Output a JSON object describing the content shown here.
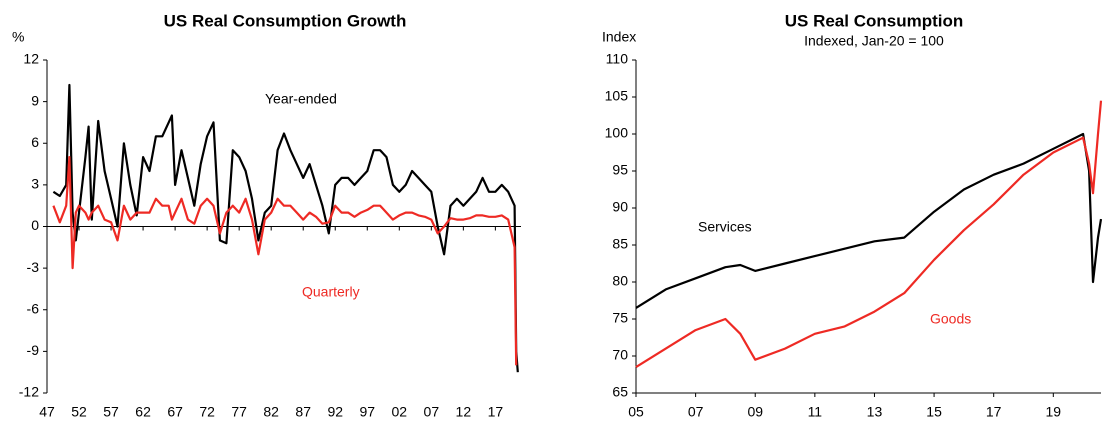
{
  "chart_data": [
    {
      "type": "line",
      "title": "US Real Consumption  Growth",
      "y_label": "%",
      "x": [
        1948,
        1949,
        1950,
        1950.5,
        1951,
        1951.5,
        1952,
        1953,
        1953.5,
        1954,
        1955,
        1956,
        1957,
        1958,
        1959,
        1960,
        1961,
        1962,
        1963,
        1964,
        1965,
        1966,
        1966.5,
        1967,
        1968,
        1969,
        1970,
        1971,
        1972,
        1973,
        1974,
        1975,
        1976,
        1977,
        1978,
        1979,
        1980,
        1981,
        1982,
        1983,
        1984,
        1985,
        1986,
        1987,
        1988,
        1989,
        1990,
        1991,
        1992,
        1993,
        1994,
        1995,
        1996,
        1997,
        1998,
        1999,
        2000,
        2001,
        2002,
        2003,
        2004,
        2005,
        2006,
        2007,
        2008,
        2009,
        2010,
        2011,
        2012,
        2013,
        2014,
        2015,
        2016,
        2017,
        2018,
        2019,
        2020,
        2020.25,
        2020.5
      ],
      "series": [
        {
          "name": "Year-ended",
          "color": "#000000",
          "values": [
            2.5,
            2.2,
            3,
            10.2,
            1,
            -1,
            1,
            5,
            7.2,
            0.5,
            7.6,
            4,
            2,
            0,
            6,
            3,
            0.8,
            5,
            4,
            6.5,
            6.5,
            7.5,
            8,
            3,
            5.5,
            3.5,
            1.5,
            4.5,
            6.5,
            7.5,
            -1,
            -1.2,
            5.5,
            5,
            4,
            2,
            -1,
            1,
            1.5,
            5.5,
            6.7,
            5.5,
            4.5,
            3.5,
            4.5,
            3,
            1.5,
            -0.5,
            3,
            3.5,
            3.5,
            3,
            3.5,
            4,
            5.5,
            5.5,
            5,
            3,
            2.5,
            3,
            4,
            3.5,
            3,
            2.5,
            0,
            -2,
            1.5,
            2,
            1.5,
            2,
            2.5,
            3.5,
            2.5,
            2.5,
            3,
            2.5,
            1.5,
            -9,
            -10.5
          ]
        },
        {
          "name": "Quarterly",
          "color": "#ee2a24",
          "values": [
            1.5,
            0.3,
            1.5,
            5,
            -3,
            1,
            1.5,
            1,
            0.5,
            1,
            1.5,
            0.5,
            0.3,
            -1,
            1.5,
            0.5,
            1,
            1,
            1,
            2,
            1.5,
            1.5,
            0.5,
            1,
            2,
            0.5,
            0.2,
            1.5,
            2,
            1.5,
            -0.5,
            1,
            1.5,
            1,
            2,
            0.5,
            -2,
            0.5,
            1,
            2,
            1.5,
            1.5,
            1,
            0.5,
            1,
            0.7,
            0.2,
            0.3,
            1.5,
            1,
            1,
            0.7,
            1,
            1.2,
            1.5,
            1.5,
            1,
            0.5,
            0.8,
            1,
            1,
            0.8,
            0.7,
            0.5,
            -0.5,
            0,
            0.6,
            0.5,
            0.5,
            0.6,
            0.8,
            0.8,
            0.7,
            0.7,
            0.8,
            0.5,
            -1.5,
            -10,
            null
          ]
        }
      ],
      "xlim": [
        1947,
        2021
      ],
      "xticks": [
        {
          "value": 1947,
          "label": "47"
        },
        {
          "value": 1952,
          "label": "52"
        },
        {
          "value": 1957,
          "label": "57"
        },
        {
          "value": 1962,
          "label": "62"
        },
        {
          "value": 1967,
          "label": "67"
        },
        {
          "value": 1972,
          "label": "72"
        },
        {
          "value": 1977,
          "label": "77"
        },
        {
          "value": 1982,
          "label": "82"
        },
        {
          "value": 1987,
          "label": "87"
        },
        {
          "value": 1992,
          "label": "92"
        },
        {
          "value": 1997,
          "label": "97"
        },
        {
          "value": 2002,
          "label": "02"
        },
        {
          "value": 2007,
          "label": "07"
        },
        {
          "value": 2012,
          "label": "12"
        },
        {
          "value": 2017,
          "label": "17"
        }
      ],
      "ylim": [
        -12,
        12
      ],
      "yticks": [
        -12,
        -9,
        -6,
        -3,
        0,
        3,
        6,
        9,
        12
      ],
      "grid": false
    },
    {
      "type": "line",
      "title": "US Real Consumption",
      "subtitle": "Indexed, Jan-20 = 100",
      "y_label": "Index",
      "x": [
        2005,
        2006,
        2007,
        2008,
        2008.5,
        2009,
        2010,
        2011,
        2012,
        2013,
        2014,
        2015,
        2016,
        2017,
        2018,
        2019,
        2020,
        2020.2,
        2020.33,
        2020.5,
        2020.6
      ],
      "series": [
        {
          "name": "Services",
          "color": "#000000",
          "values": [
            76.5,
            79,
            80.5,
            82,
            82.3,
            81.5,
            82.5,
            83.5,
            84.5,
            85.5,
            86,
            89.5,
            92.5,
            94.5,
            96,
            98,
            100,
            95,
            80,
            86,
            88.5
          ]
        },
        {
          "name": "Goods",
          "color": "#ee2a24",
          "values": [
            68.5,
            71,
            73.5,
            75,
            73,
            69.5,
            71,
            73,
            74,
            76,
            78.5,
            83,
            87,
            90.5,
            94.5,
            97.5,
            99.5,
            96,
            92,
            100,
            104.5
          ]
        }
      ],
      "xlim": [
        2005,
        2020.6
      ],
      "xticks": [
        {
          "value": 2005,
          "label": "05"
        },
        {
          "value": 2007,
          "label": "07"
        },
        {
          "value": 2009,
          "label": "09"
        },
        {
          "value": 2011,
          "label": "11"
        },
        {
          "value": 2013,
          "label": "13"
        },
        {
          "value": 2015,
          "label": "15"
        },
        {
          "value": 2017,
          "label": "17"
        },
        {
          "value": 2019,
          "label": "19"
        }
      ],
      "ylim": [
        65,
        110
      ],
      "yticks": [
        65,
        70,
        75,
        80,
        85,
        90,
        95,
        100,
        105,
        110
      ],
      "grid": false
    }
  ]
}
